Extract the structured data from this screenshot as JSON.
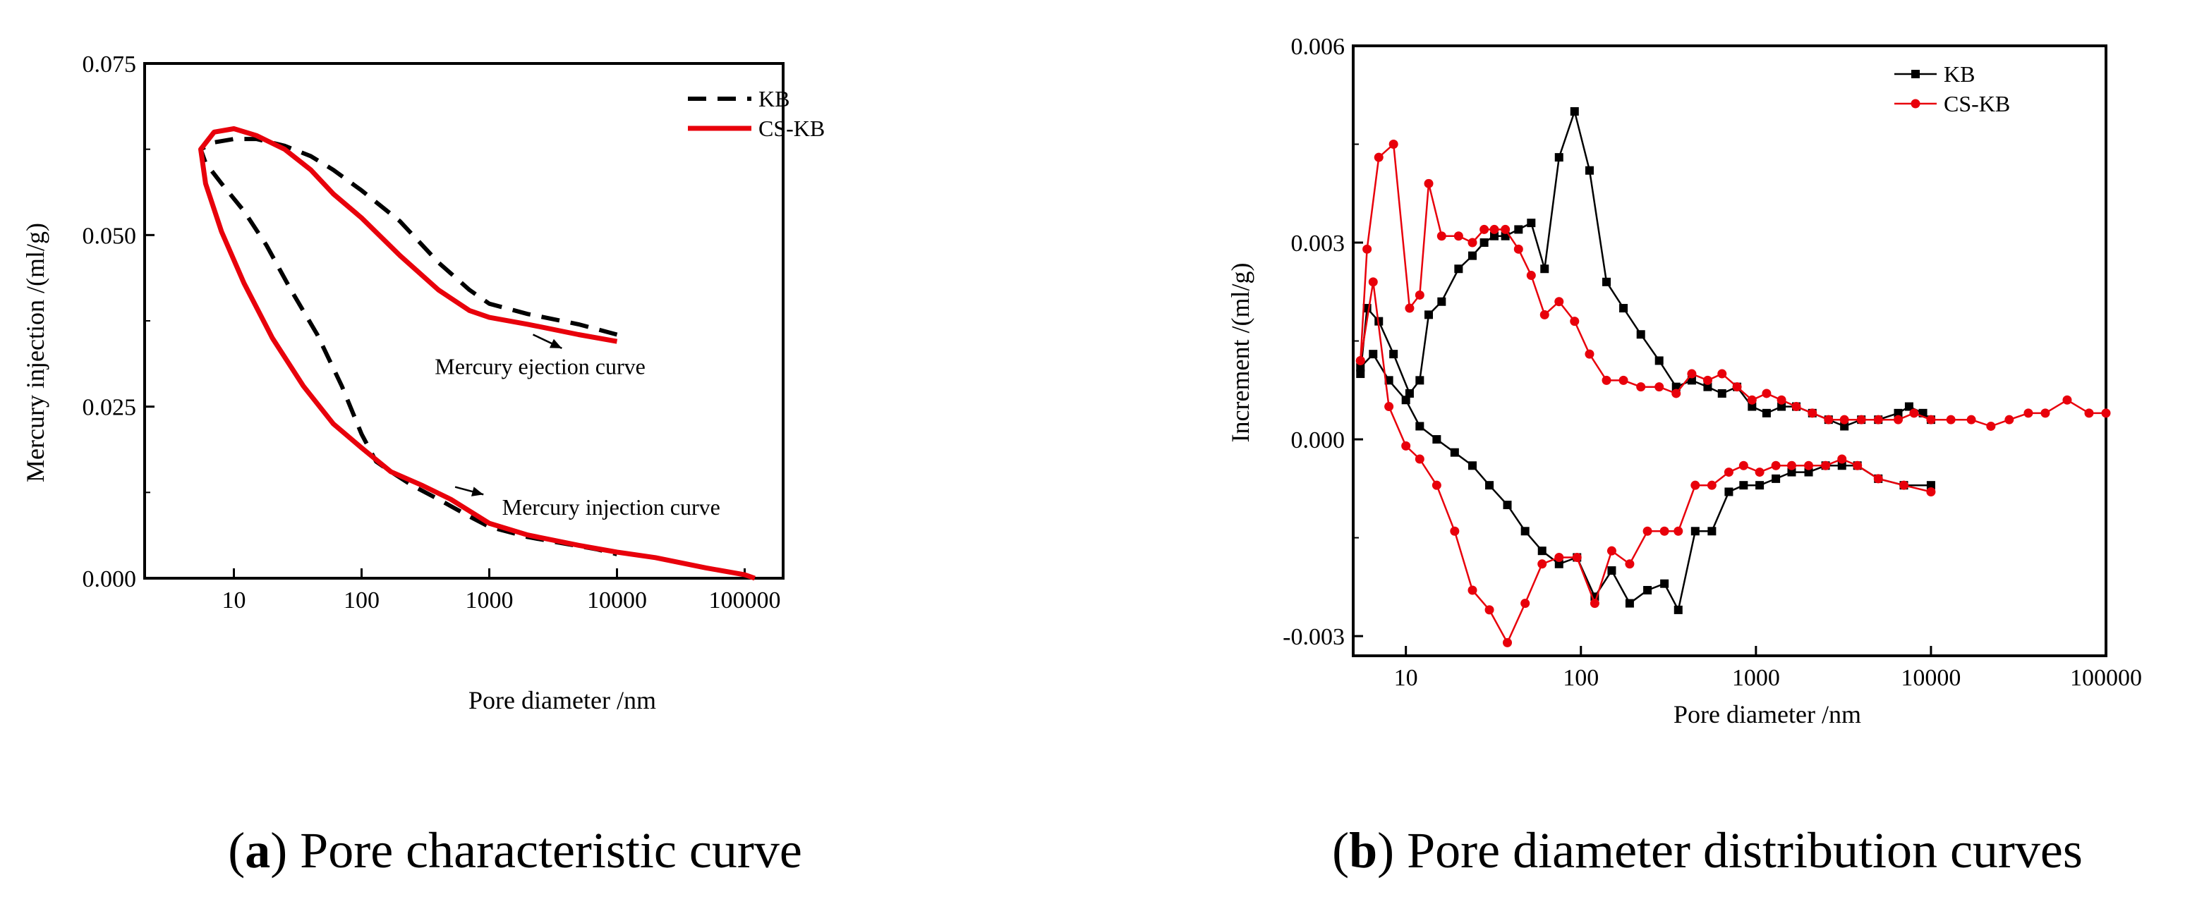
{
  "chart_data": [
    {
      "type": "line",
      "caption_letter": "a",
      "caption_text": "Pore characteristic curve",
      "xlabel": "Pore diameter /nm",
      "ylabel": "Mercury injection /(ml/g)",
      "xscale": "log",
      "xlim": [
        2,
        200000
      ],
      "ylim": [
        0,
        0.075
      ],
      "xticks": [
        10,
        100,
        1000,
        10000,
        100000
      ],
      "xtick_labels": [
        "10",
        "100",
        "1000",
        "10000",
        "100000"
      ],
      "yticks": [
        0,
        0.025,
        0.05,
        0.075
      ],
      "ytick_labels": [
        "0.000",
        "0.025",
        "0.050",
        "0.075"
      ],
      "legend_position": "top-right",
      "annotations": [
        {
          "text": "Mercury ejection curve",
          "arrow_from": [
            2200,
            0.0355
          ],
          "arrow_to": [
            3700,
            0.0335
          ],
          "text_at": [
            2500,
            0.031
          ]
        },
        {
          "text": "Mercury injection curve",
          "arrow_from": [
            540,
            0.0133
          ],
          "arrow_to": [
            900,
            0.0122
          ],
          "text_at": [
            9000,
            0.0105
          ]
        }
      ],
      "series": [
        {
          "name": "KB",
          "color": "#000000",
          "style": "dashed",
          "x": [
            10000,
            5000,
            2000,
            1000,
            700,
            400,
            200,
            100,
            60,
            40,
            25,
            15,
            10,
            7,
            5.5,
            6,
            8,
            12,
            18,
            28,
            45,
            70,
            100,
            130,
            170,
            250,
            400,
            700,
            1000,
            2000,
            4000,
            7000,
            10000
          ],
          "y": [
            0.0355,
            0.037,
            0.0385,
            0.04,
            0.042,
            0.046,
            0.052,
            0.0565,
            0.0595,
            0.0615,
            0.063,
            0.064,
            0.064,
            0.0635,
            0.0625,
            0.0605,
            0.0575,
            0.0535,
            0.0485,
            0.042,
            0.0355,
            0.028,
            0.021,
            0.017,
            0.0155,
            0.0135,
            0.0115,
            0.009,
            0.0075,
            0.006,
            0.005,
            0.0042,
            0.0035
          ]
        },
        {
          "name": "CS-KB",
          "color": "#e8000b",
          "style": "solid",
          "x": [
            10000,
            5000,
            2000,
            1000,
            700,
            400,
            200,
            100,
            60,
            40,
            25,
            15,
            10,
            7,
            5.5,
            6,
            8,
            12,
            20,
            35,
            60,
            100,
            170,
            300,
            500,
            1000,
            2000,
            5000,
            10000,
            20000,
            50000,
            100000,
            120000
          ],
          "y": [
            0.0345,
            0.0355,
            0.037,
            0.038,
            0.039,
            0.042,
            0.047,
            0.0525,
            0.056,
            0.0595,
            0.0625,
            0.0645,
            0.0655,
            0.065,
            0.0625,
            0.0575,
            0.0505,
            0.043,
            0.035,
            0.028,
            0.0225,
            0.019,
            0.0155,
            0.0135,
            0.0115,
            0.008,
            0.0063,
            0.0048,
            0.0038,
            0.003,
            0.0015,
            0.0005,
            0.0
          ]
        }
      ]
    },
    {
      "type": "line",
      "caption_letter": "b",
      "caption_text": "Pore diameter distribution curves",
      "xlabel": "Pore diameter /nm",
      "ylabel": "Increment /(ml/g)",
      "xscale": "log",
      "xlim": [
        5,
        100000
      ],
      "ylim": [
        -0.0033,
        0.006
      ],
      "xticks": [
        10,
        100,
        1000,
        10000,
        100000
      ],
      "xtick_labels": [
        "10",
        "100",
        "1000",
        "10000",
        "100000"
      ],
      "yticks": [
        -0.003,
        0,
        0.003,
        0.006
      ],
      "ytick_labels": [
        "-0.003",
        "0.000",
        "0.003",
        "0.006"
      ],
      "legend_position": "top-right",
      "series": [
        {
          "name": "KB",
          "color": "#000000",
          "marker": "square",
          "x": [
            5.5,
            6,
            7,
            8.5,
            10.5,
            12,
            13.5,
            16,
            20,
            24,
            28,
            32,
            37,
            44,
            52,
            62,
            75,
            92,
            112,
            140,
            175,
            220,
            280,
            350,
            430,
            530,
            640,
            780,
            950,
            1150,
            1400,
            1700,
            2100,
            2600,
            3200,
            4000,
            5000,
            6500,
            7500,
            9000,
            10000
          ],
          "y": [
            0.001,
            0.002,
            0.0018,
            0.0013,
            0.0007,
            0.0009,
            0.0019,
            0.0021,
            0.0026,
            0.0028,
            0.003,
            0.0031,
            0.0031,
            0.0032,
            0.0033,
            0.0026,
            0.0043,
            0.005,
            0.0041,
            0.0024,
            0.002,
            0.0016,
            0.0012,
            0.0008,
            0.0009,
            0.0008,
            0.0007,
            0.0008,
            0.0005,
            0.0004,
            0.0005,
            0.0005,
            0.0004,
            0.0003,
            0.0002,
            0.0003,
            0.0003,
            0.0004,
            0.0005,
            0.0004,
            0.0003
          ]
        },
        {
          "name": "KB",
          "color": "#000000",
          "marker": "square",
          "x": [
            5.5,
            6.5,
            8,
            10,
            12,
            15,
            19,
            24,
            30,
            38,
            48,
            60,
            75,
            95,
            120,
            150,
            190,
            240,
            300,
            360,
            450,
            560,
            700,
            850,
            1050,
            1300,
            1600,
            2000,
            2500,
            3100,
            3800,
            5000,
            7000,
            10000
          ],
          "y": [
            0.0011,
            0.0013,
            0.0009,
            0.0006,
            0.0002,
            0.0,
            -0.0002,
            -0.0004,
            -0.0007,
            -0.001,
            -0.0014,
            -0.0017,
            -0.0019,
            -0.0018,
            -0.0024,
            -0.002,
            -0.0025,
            -0.0023,
            -0.0022,
            -0.0026,
            -0.0014,
            -0.0014,
            -0.0008,
            -0.0007,
            -0.0007,
            -0.0006,
            -0.0005,
            -0.0005,
            -0.0004,
            -0.0004,
            -0.0004,
            -0.0006,
            -0.0007,
            -0.0007
          ]
        },
        {
          "name": "CS-KB",
          "color": "#e8000b",
          "marker": "circle",
          "x": [
            5.5,
            6,
            7,
            8.5,
            10.5,
            12,
            13.5,
            16,
            20,
            24,
            28,
            32,
            37,
            44,
            52,
            62,
            75,
            92,
            112,
            140,
            175,
            220,
            280,
            350,
            430,
            530,
            640,
            780,
            950,
            1150,
            1400,
            1700,
            2100,
            2600,
            3200,
            4000,
            5000,
            6500,
            8000,
            10000,
            13000,
            17000,
            22000,
            28000,
            36000,
            45000,
            60000,
            80000,
            100000
          ],
          "y": [
            0.0012,
            0.0029,
            0.0043,
            0.0045,
            0.002,
            0.0022,
            0.0039,
            0.0031,
            0.0031,
            0.003,
            0.0032,
            0.0032,
            0.0032,
            0.0029,
            0.0025,
            0.0019,
            0.0021,
            0.0018,
            0.0013,
            0.0009,
            0.0009,
            0.0008,
            0.0008,
            0.0007,
            0.001,
            0.0009,
            0.001,
            0.0008,
            0.0006,
            0.0007,
            0.0006,
            0.0005,
            0.0004,
            0.0003,
            0.0003,
            0.0003,
            0.0003,
            0.0003,
            0.0004,
            0.0003,
            0.0003,
            0.0003,
            0.0002,
            0.0003,
            0.0004,
            0.0004,
            0.0006,
            0.0004,
            0.0004
          ]
        },
        {
          "name": "CS-KB",
          "color": "#e8000b",
          "marker": "circle",
          "x": [
            5.5,
            6.5,
            8,
            10,
            12,
            15,
            19,
            24,
            30,
            38,
            48,
            60,
            75,
            95,
            120,
            150,
            190,
            240,
            300,
            360,
            450,
            560,
            700,
            850,
            1050,
            1300,
            1600,
            2000,
            2500,
            3100,
            3800,
            5000,
            7000,
            10000
          ],
          "y": [
            0.0012,
            0.0024,
            0.0005,
            -0.0001,
            -0.0003,
            -0.0007,
            -0.0014,
            -0.0023,
            -0.0026,
            -0.0031,
            -0.0025,
            -0.0019,
            -0.0018,
            -0.0018,
            -0.0025,
            -0.0017,
            -0.0019,
            -0.0014,
            -0.0014,
            -0.0014,
            -0.0007,
            -0.0007,
            -0.0005,
            -0.0004,
            -0.0005,
            -0.0004,
            -0.0004,
            -0.0004,
            -0.0004,
            -0.0003,
            -0.0004,
            -0.0006,
            -0.0007,
            -0.0008
          ]
        }
      ]
    }
  ]
}
